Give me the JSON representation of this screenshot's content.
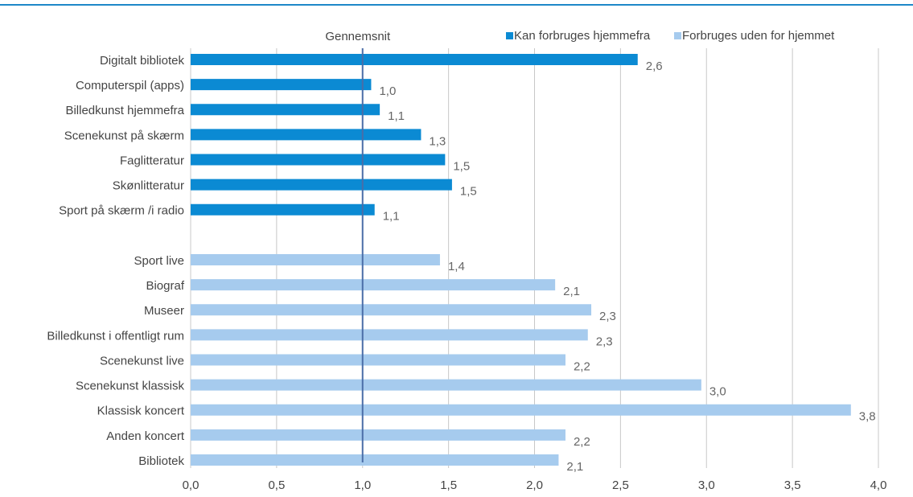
{
  "chart_data": {
    "type": "hbar",
    "categories": [
      "Digitalt bibliotek",
      "Computerspil (apps)",
      "Billedkunst hjemmefra",
      "Scenekunst på skærm",
      "Faglitteratur",
      "Skønlitteratur",
      "Sport på skærm /i radio",
      null,
      "Sport live",
      "Biograf",
      "Museer",
      "Billedkunst i offentligt rum",
      "Scenekunst live",
      "Scenekunst klassisk",
      "Klassisk koncert",
      "Anden koncert",
      "Bibliotek"
    ],
    "series": [
      {
        "name": "Kan forbruges hjemmefra",
        "color": "#0b8ad3",
        "values": [
          2.6,
          1.05,
          1.1,
          1.34,
          1.48,
          1.52,
          1.07,
          null,
          null,
          null,
          null,
          null,
          null,
          null,
          null,
          null,
          null
        ],
        "value_labels": [
          "2,6",
          "1,0",
          "1,1",
          "1,3",
          "1,5",
          "1,5",
          "1,1",
          null,
          null,
          null,
          null,
          null,
          null,
          null,
          null,
          null,
          null
        ]
      },
      {
        "name": "Forbruges uden for hjemmet",
        "color": "#a6cbee",
        "values": [
          null,
          null,
          null,
          null,
          null,
          null,
          null,
          null,
          1.45,
          2.12,
          2.33,
          2.31,
          2.18,
          2.97,
          3.84,
          2.18,
          2.14
        ],
        "value_labels": [
          null,
          null,
          null,
          null,
          null,
          null,
          null,
          null,
          "1,4",
          "2,1",
          "2,3",
          "2,3",
          "2,2",
          "3,0",
          "3,8",
          "2,2",
          "2,1"
        ]
      }
    ],
    "average_line": {
      "label": "Gennemsnit",
      "value": 1.0
    },
    "xlim": [
      0,
      4
    ],
    "xticks": [
      {
        "value": 0,
        "label": "0,0"
      },
      {
        "value": 0.5,
        "label": "0,5"
      },
      {
        "value": 1,
        "label": "1,0"
      },
      {
        "value": 1.5,
        "label": "1,5"
      },
      {
        "value": 2,
        "label": "2,0"
      },
      {
        "value": 2.5,
        "label": "2,5"
      },
      {
        "value": 3,
        "label": "3,0"
      },
      {
        "value": 3.5,
        "label": "3,5"
      },
      {
        "value": 4,
        "label": "4,0"
      }
    ],
    "grid": true,
    "legend": "top-right"
  }
}
